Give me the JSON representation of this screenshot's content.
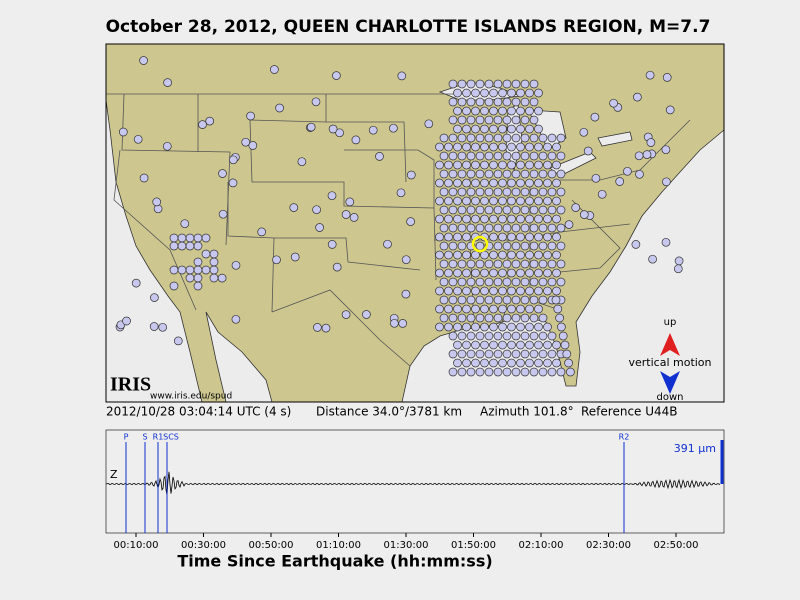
{
  "title": "October 28, 2012, QUEEN CHARLOTTE ISLANDS REGION, M=7.7",
  "map": {
    "logo": "IRIS",
    "url": "www.iris.edu/spud",
    "legend": {
      "up": "up",
      "label": "vertical motion",
      "down": "down"
    }
  },
  "info": {
    "time": "2012/10/28 03:04:14 UTC (4 s)",
    "distance": "Distance  34.0°/3781 km",
    "azimuth": "Azimuth 101.8°",
    "reference": "Reference U44B"
  },
  "seismogram": {
    "channel": "Z",
    "amplitude": "391 μm",
    "phases": [
      "P",
      "S",
      "R1",
      "SCS",
      "R2"
    ],
    "xticks": [
      "00:10:00",
      "00:30:00",
      "00:50:00",
      "01:10:00",
      "01:30:00",
      "01:50:00",
      "02:10:00",
      "02:30:00",
      "02:50:00"
    ],
    "xlabel": "Time Since Earthquake (hh:mm:ss)"
  }
}
